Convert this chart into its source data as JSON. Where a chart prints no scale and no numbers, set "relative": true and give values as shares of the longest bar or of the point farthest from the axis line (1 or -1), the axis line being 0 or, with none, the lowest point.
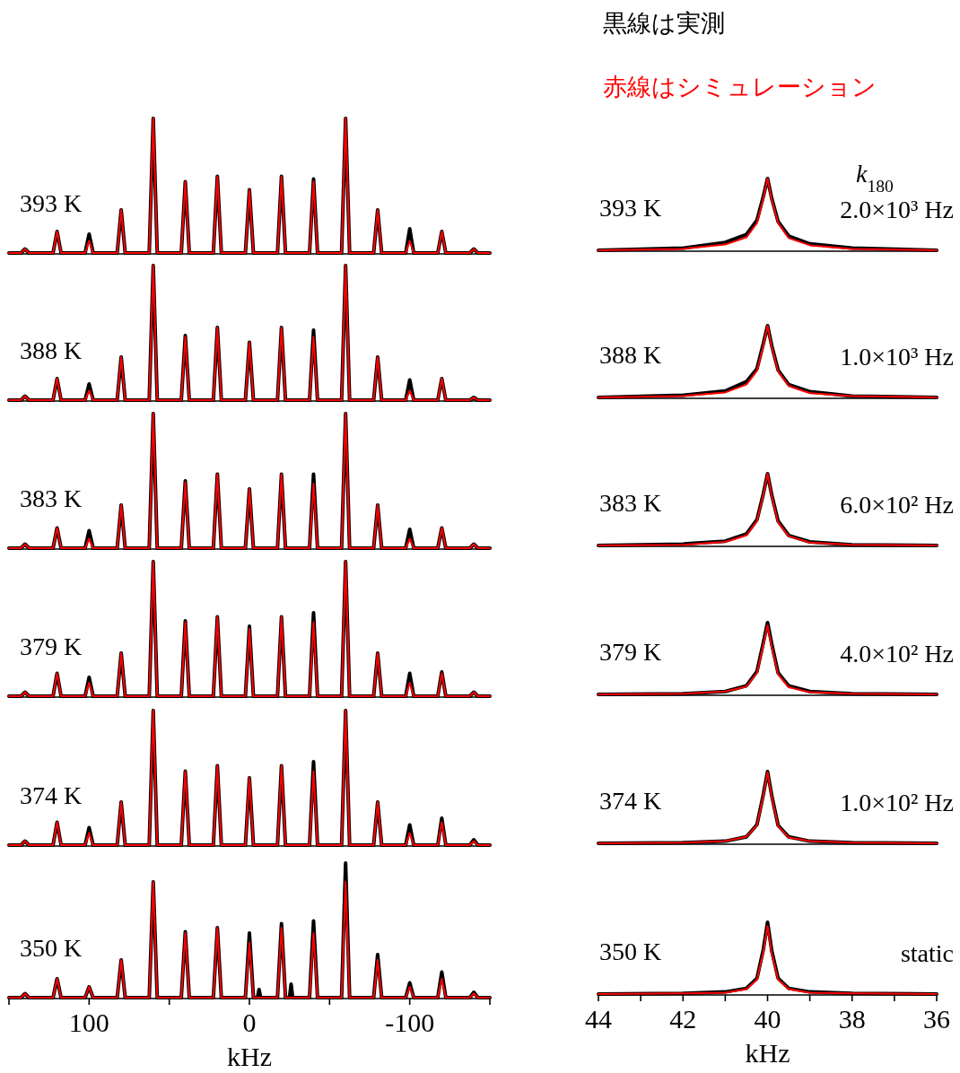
{
  "chart_data": [
    {
      "type": "line",
      "relative": true,
      "xlim": [
        150,
        -150
      ],
      "tick_labels": false,
      "annotations": [
        "393 K"
      ],
      "series": [
        {
          "color": "#000000",
          "x": [
            150,
            142.5,
            140,
            137.5,
            122.5,
            120,
            117.5,
            102.5,
            100,
            97.5,
            82.5,
            80,
            77.5,
            62.5,
            60,
            57.5,
            42.5,
            40,
            37.5,
            22.5,
            20,
            17.5,
            2.5,
            0,
            -2.5,
            -17.5,
            -20,
            -22.5,
            -37.5,
            -40,
            -42.5,
            -57.5,
            -60,
            -62.5,
            -77.5,
            -80,
            -82.5,
            -97.5,
            -100,
            -102.5,
            -117.5,
            -120,
            -122.5,
            -137.5,
            -140,
            -142.5,
            -150
          ],
          "values": [
            0,
            0,
            0.03,
            0,
            0,
            0.16,
            0,
            0,
            0.14,
            0,
            0,
            0.32,
            0,
            0,
            1,
            0,
            0,
            0.53,
            0,
            0,
            0.57,
            0,
            0,
            0.47,
            0,
            0,
            0.57,
            0,
            0,
            0.55,
            0,
            0,
            1,
            0,
            0,
            0.32,
            0,
            0,
            0.18,
            0,
            0,
            0.16,
            0,
            0,
            0.03,
            0,
            0
          ]
        },
        {
          "color": "#ff0000",
          "x": [
            150,
            142.5,
            140,
            137.5,
            122.5,
            120,
            117.5,
            102.5,
            100,
            97.5,
            82.5,
            80,
            77.5,
            62.5,
            60,
            57.5,
            42.5,
            40,
            37.5,
            22.5,
            20,
            17.5,
            2.5,
            0,
            -2.5,
            -17.5,
            -20,
            -22.5,
            -37.5,
            -40,
            -42.5,
            -57.5,
            -60,
            -62.5,
            -77.5,
            -80,
            -82.5,
            -97.5,
            -100,
            -102.5,
            -117.5,
            -120,
            -122.5,
            -137.5,
            -140,
            -142.5,
            -150
          ],
          "values": [
            0,
            0,
            0.03,
            0,
            0,
            0.16,
            0,
            0,
            0.09,
            0,
            0,
            0.32,
            0,
            0,
            1,
            0,
            0,
            0.53,
            0,
            0,
            0.57,
            0,
            0,
            0.47,
            0,
            0,
            0.57,
            0,
            0,
            0.53,
            0,
            0,
            1,
            0,
            0,
            0.32,
            0,
            0,
            0.09,
            0,
            0,
            0.16,
            0,
            0,
            0.03,
            0,
            0
          ]
        }
      ]
    },
    {
      "type": "line",
      "relative": true,
      "xlim": [
        150,
        -150
      ],
      "tick_labels": false,
      "annotations": [
        "388 K"
      ],
      "series": [
        {
          "color": "#000000",
          "x": [
            150,
            142.5,
            140,
            137.5,
            122.5,
            120,
            117.5,
            102.5,
            100,
            97.5,
            82.5,
            80,
            77.5,
            62.5,
            60,
            57.5,
            42.5,
            40,
            37.5,
            22.5,
            20,
            17.5,
            2.5,
            0,
            -2.5,
            -17.5,
            -20,
            -22.5,
            -37.5,
            -40,
            -42.5,
            -57.5,
            -60,
            -62.5,
            -77.5,
            -80,
            -82.5,
            -97.5,
            -100,
            -102.5,
            -117.5,
            -120,
            -122.5,
            -137.5,
            -140,
            -142.5,
            -150
          ],
          "values": [
            0,
            0,
            0.03,
            0,
            0,
            0.16,
            0,
            0,
            0.12,
            0,
            0,
            0.32,
            0,
            0,
            1,
            0,
            0,
            0.48,
            0,
            0,
            0.54,
            0,
            0,
            0.43,
            0,
            0,
            0.54,
            0,
            0,
            0.52,
            0,
            0,
            1,
            0,
            0,
            0.32,
            0,
            0,
            0.15,
            0,
            0,
            0.16,
            0,
            0,
            0.02,
            0,
            0
          ]
        },
        {
          "color": "#ff0000",
          "x": [
            150,
            142.5,
            140,
            137.5,
            122.5,
            120,
            117.5,
            102.5,
            100,
            97.5,
            82.5,
            80,
            77.5,
            62.5,
            60,
            57.5,
            42.5,
            40,
            37.5,
            22.5,
            20,
            17.5,
            2.5,
            0,
            -2.5,
            -17.5,
            -20,
            -22.5,
            -37.5,
            -40,
            -42.5,
            -57.5,
            -60,
            -62.5,
            -77.5,
            -80,
            -82.5,
            -97.5,
            -100,
            -102.5,
            -117.5,
            -120,
            -122.5,
            -137.5,
            -140,
            -142.5,
            -150
          ],
          "values": [
            0,
            0,
            0.03,
            0,
            0,
            0.16,
            0,
            0,
            0.07,
            0,
            0,
            0.32,
            0,
            0,
            1,
            0,
            0,
            0.47,
            0,
            0,
            0.54,
            0,
            0,
            0.43,
            0,
            0,
            0.54,
            0,
            0,
            0.47,
            0,
            0,
            1,
            0,
            0,
            0.32,
            0,
            0,
            0.07,
            0,
            0,
            0.16,
            0,
            0,
            0.02,
            0,
            0
          ]
        }
      ]
    },
    {
      "type": "line",
      "relative": true,
      "xlim": [
        150,
        -150
      ],
      "tick_labels": false,
      "annotations": [
        "383 K"
      ],
      "series": [
        {
          "color": "#000000",
          "x": [
            150,
            142.5,
            140,
            137.5,
            122.5,
            120,
            117.5,
            102.5,
            100,
            97.5,
            82.5,
            80,
            77.5,
            62.5,
            60,
            57.5,
            42.5,
            40,
            37.5,
            22.5,
            20,
            17.5,
            2.5,
            0,
            -2.5,
            -17.5,
            -20,
            -22.5,
            -37.5,
            -40,
            -42.5,
            -57.5,
            -60,
            -62.5,
            -77.5,
            -80,
            -82.5,
            -97.5,
            -100,
            -102.5,
            -117.5,
            -120,
            -122.5,
            -137.5,
            -140,
            -142.5,
            -150
          ],
          "values": [
            0,
            0,
            0.03,
            0,
            0,
            0.15,
            0,
            0,
            0.13,
            0,
            0,
            0.32,
            0,
            0,
            1,
            0,
            0,
            0.5,
            0,
            0,
            0.55,
            0,
            0,
            0.44,
            0,
            0,
            0.55,
            0,
            0,
            0.55,
            0,
            0,
            1,
            0,
            0,
            0.32,
            0,
            0,
            0.14,
            0,
            0,
            0.15,
            0,
            0,
            0.03,
            0,
            0
          ]
        },
        {
          "color": "#ff0000",
          "x": [
            150,
            142.5,
            140,
            137.5,
            122.5,
            120,
            117.5,
            102.5,
            100,
            97.5,
            82.5,
            80,
            77.5,
            62.5,
            60,
            57.5,
            42.5,
            40,
            37.5,
            22.5,
            20,
            17.5,
            2.5,
            0,
            -2.5,
            -17.5,
            -20,
            -22.5,
            -37.5,
            -40,
            -42.5,
            -57.5,
            -60,
            -62.5,
            -77.5,
            -80,
            -82.5,
            -97.5,
            -100,
            -102.5,
            -117.5,
            -120,
            -122.5,
            -137.5,
            -140,
            -142.5,
            -150
          ],
          "values": [
            0,
            0,
            0.03,
            0,
            0,
            0.15,
            0,
            0,
            0.07,
            0,
            0,
            0.32,
            0,
            0,
            1,
            0,
            0,
            0.49,
            0,
            0,
            0.55,
            0,
            0,
            0.44,
            0,
            0,
            0.55,
            0,
            0,
            0.48,
            0,
            0,
            1,
            0,
            0,
            0.32,
            0,
            0,
            0.07,
            0,
            0,
            0.15,
            0,
            0,
            0.03,
            0,
            0
          ]
        }
      ]
    },
    {
      "type": "line",
      "relative": true,
      "xlim": [
        150,
        -150
      ],
      "tick_labels": false,
      "annotations": [
        "379 K"
      ],
      "series": [
        {
          "color": "#000000",
          "x": [
            150,
            142.5,
            140,
            137.5,
            122.5,
            120,
            117.5,
            102.5,
            100,
            97.5,
            82.5,
            80,
            77.5,
            62.5,
            60,
            57.5,
            42.5,
            40,
            37.5,
            22.5,
            20,
            17.5,
            2.5,
            0,
            -2.5,
            -17.5,
            -20,
            -22.5,
            -37.5,
            -40,
            -42.5,
            -57.5,
            -60,
            -62.5,
            -77.5,
            -80,
            -82.5,
            -97.5,
            -100,
            -102.5,
            -117.5,
            -120,
            -122.5,
            -137.5,
            -140,
            -142.5,
            -150
          ],
          "values": [
            0,
            0,
            0.03,
            0,
            0,
            0.17,
            0,
            0,
            0.14,
            0,
            0,
            0.32,
            0,
            0,
            1,
            0,
            0,
            0.56,
            0,
            0,
            0.59,
            0,
            0,
            0.52,
            0,
            0,
            0.59,
            0,
            0,
            0.62,
            0,
            0,
            1,
            0,
            0,
            0.32,
            0,
            0,
            0.17,
            0,
            0,
            0.18,
            0,
            0,
            0.03,
            0,
            0
          ]
        },
        {
          "color": "#ff0000",
          "x": [
            150,
            142.5,
            140,
            137.5,
            122.5,
            120,
            117.5,
            102.5,
            100,
            97.5,
            82.5,
            80,
            77.5,
            62.5,
            60,
            57.5,
            42.5,
            40,
            37.5,
            22.5,
            20,
            17.5,
            2.5,
            0,
            -2.5,
            -17.5,
            -20,
            -22.5,
            -37.5,
            -40,
            -42.5,
            -57.5,
            -60,
            -62.5,
            -77.5,
            -80,
            -82.5,
            -97.5,
            -100,
            -102.5,
            -117.5,
            -120,
            -122.5,
            -137.5,
            -140,
            -142.5,
            -150
          ],
          "values": [
            0,
            0,
            0.03,
            0,
            0,
            0.17,
            0,
            0,
            0.1,
            0,
            0,
            0.32,
            0,
            0,
            1,
            0,
            0,
            0.55,
            0,
            0,
            0.59,
            0,
            0,
            0.5,
            0,
            0,
            0.59,
            0,
            0,
            0.55,
            0,
            0,
            1,
            0,
            0,
            0.32,
            0,
            0,
            0.1,
            0,
            0,
            0.17,
            0,
            0,
            0.03,
            0,
            0
          ]
        }
      ]
    },
    {
      "type": "line",
      "relative": true,
      "xlim": [
        150,
        -150
      ],
      "tick_labels": false,
      "annotations": [
        "374 K"
      ],
      "series": [
        {
          "color": "#000000",
          "x": [
            150,
            142.5,
            140,
            137.5,
            122.5,
            120,
            117.5,
            102.5,
            100,
            97.5,
            82.5,
            80,
            77.5,
            62.5,
            60,
            57.5,
            42.5,
            40,
            37.5,
            22.5,
            20,
            17.5,
            2.5,
            0,
            -2.5,
            -17.5,
            -20,
            -22.5,
            -37.5,
            -40,
            -42.5,
            -57.5,
            -60,
            -62.5,
            -77.5,
            -80,
            -82.5,
            -97.5,
            -100,
            -102.5,
            -117.5,
            -120,
            -122.5,
            -137.5,
            -140,
            -142.5,
            -150
          ],
          "values": [
            0,
            0,
            0.03,
            0,
            0,
            0.17,
            0,
            0,
            0.13,
            0,
            0,
            0.32,
            0,
            0,
            1,
            0,
            0,
            0.55,
            0,
            0,
            0.59,
            0,
            0,
            0.5,
            0,
            0,
            0.59,
            0,
            0,
            0.62,
            0,
            0,
            1,
            0,
            0,
            0.32,
            0,
            0,
            0.15,
            0,
            0,
            0.2,
            0,
            0,
            0.04,
            0,
            0
          ]
        },
        {
          "color": "#ff0000",
          "x": [
            150,
            142.5,
            140,
            137.5,
            122.5,
            120,
            117.5,
            102.5,
            100,
            97.5,
            82.5,
            80,
            77.5,
            62.5,
            60,
            57.5,
            42.5,
            40,
            37.5,
            22.5,
            20,
            17.5,
            2.5,
            0,
            -2.5,
            -17.5,
            -20,
            -22.5,
            -37.5,
            -40,
            -42.5,
            -57.5,
            -60,
            -62.5,
            -77.5,
            -80,
            -82.5,
            -97.5,
            -100,
            -102.5,
            -117.5,
            -120,
            -122.5,
            -137.5,
            -140,
            -142.5,
            -150
          ],
          "values": [
            0,
            0,
            0.03,
            0,
            0,
            0.17,
            0,
            0,
            0.09,
            0,
            0,
            0.32,
            0,
            0,
            1,
            0,
            0,
            0.55,
            0,
            0,
            0.59,
            0,
            0,
            0.5,
            0,
            0,
            0.59,
            0,
            0,
            0.55,
            0,
            0,
            1,
            0,
            0,
            0.32,
            0,
            0,
            0.09,
            0,
            0,
            0.17,
            0,
            0,
            0.03,
            0,
            0
          ]
        }
      ]
    },
    {
      "type": "line",
      "relative": true,
      "xlim": [
        150,
        -150
      ],
      "tick_labels": "x",
      "xlabel": "kHz",
      "xticks": [
        {
          "value": 150,
          "label": null
        },
        100,
        {
          "value": 50,
          "label": null
        },
        0,
        {
          "value": -50,
          "label": null
        },
        -100,
        {
          "value": -150,
          "label": null
        }
      ],
      "annotations": [
        "350 K"
      ],
      "series": [
        {
          "color": "#000000",
          "x": [
            150,
            142.5,
            140,
            137.5,
            122.5,
            120,
            117.5,
            102.5,
            100,
            97.5,
            82.5,
            80,
            77.5,
            62.5,
            60,
            57.5,
            42.5,
            40,
            37.5,
            22.5,
            20,
            17.5,
            2.5,
            0,
            -2.5,
            -5,
            -6,
            -7,
            -17.5,
            -20,
            -22.5,
            -25,
            -26,
            -27,
            -37.5,
            -40,
            -42.5,
            -57.5,
            -60,
            -62.5,
            -77.5,
            -80,
            -82.5,
            -97.5,
            -100,
            -102.5,
            -117.5,
            -120,
            -122.5,
            -137.5,
            -140,
            -142.5,
            -150
          ],
          "values": [
            0,
            0,
            0.03,
            0,
            0,
            0.14,
            0,
            0,
            0.08,
            0,
            0,
            0.28,
            0,
            0,
            0.86,
            0,
            0,
            0.49,
            0,
            0,
            0.52,
            0,
            0,
            0.48,
            0,
            0,
            0.06,
            0,
            0,
            0.55,
            0,
            0,
            0.1,
            0,
            0,
            0.57,
            0,
            0,
            1,
            0,
            0,
            0.32,
            0,
            0,
            0.11,
            0,
            0,
            0.19,
            0,
            0,
            0.04,
            0,
            0
          ]
        },
        {
          "color": "#ff0000",
          "x": [
            150,
            142.5,
            140,
            137.5,
            122.5,
            120,
            117.5,
            102.5,
            100,
            97.5,
            82.5,
            80,
            77.5,
            62.5,
            60,
            57.5,
            42.5,
            40,
            37.5,
            22.5,
            20,
            17.5,
            2.5,
            0,
            -2.5,
            -17.5,
            -20,
            -22.5,
            -37.5,
            -40,
            -42.5,
            -57.5,
            -60,
            -62.5,
            -77.5,
            -80,
            -82.5,
            -97.5,
            -100,
            -102.5,
            -117.5,
            -120,
            -122.5,
            -137.5,
            -140,
            -142.5,
            -150
          ],
          "values": [
            0,
            0,
            0.03,
            0,
            0,
            0.14,
            0,
            0,
            0.08,
            0,
            0,
            0.28,
            0,
            0,
            0.86,
            0,
            0,
            0.48,
            0,
            0,
            0.52,
            0,
            0,
            0.41,
            0,
            0,
            0.52,
            0,
            0,
            0.48,
            0,
            0,
            0.86,
            0,
            0,
            0.28,
            0,
            0,
            0.08,
            0,
            0,
            0.14,
            0,
            0,
            0.03,
            0,
            0
          ]
        }
      ]
    },
    {
      "type": "line",
      "relative": true,
      "xlim": [
        44,
        36
      ],
      "tick_labels": false,
      "annotations": [
        "393 K",
        "2.0×10³ Hz",
        "*k*$_{180}$"
      ],
      "series": [
        {
          "name": "黒線は実測",
          "color": "#000000",
          "x": [
            44,
            42,
            41,
            40.5,
            40.25,
            40.1,
            40,
            39.9,
            39.75,
            39.5,
            39,
            38,
            36
          ],
          "values": [
            0,
            0.03,
            0.11,
            0.22,
            0.42,
            0.75,
            1,
            0.72,
            0.4,
            0.2,
            0.09,
            0.03,
            0
          ]
        },
        {
          "name": "赤線はシミュレーション",
          "color": "#ff0000",
          "x": [
            44,
            42,
            41,
            40.5,
            40.25,
            40.1,
            40,
            39.9,
            39.75,
            39.5,
            39,
            38,
            36
          ],
          "values": [
            0,
            0.02,
            0.08,
            0.18,
            0.38,
            0.72,
            1,
            0.7,
            0.38,
            0.17,
            0.07,
            0.02,
            0
          ]
        }
      ]
    },
    {
      "type": "line",
      "relative": true,
      "xlim": [
        44,
        36
      ],
      "tick_labels": false,
      "annotations": [
        "388 K",
        "1.0×10³ Hz"
      ],
      "series": [
        {
          "color": "#000000",
          "x": [
            44,
            42,
            41,
            40.5,
            40.25,
            40.1,
            40,
            39.9,
            39.75,
            39.5,
            39,
            38,
            36
          ],
          "values": [
            0,
            0.03,
            0.09,
            0.22,
            0.4,
            0.75,
            1,
            0.72,
            0.38,
            0.18,
            0.08,
            0.02,
            0
          ]
        },
        {
          "color": "#ff0000",
          "x": [
            44,
            42,
            41,
            40.5,
            40.25,
            40.1,
            40,
            39.9,
            39.75,
            39.5,
            39,
            38,
            36
          ],
          "values": [
            0,
            0.02,
            0.07,
            0.18,
            0.37,
            0.72,
            1,
            0.7,
            0.36,
            0.16,
            0.06,
            0.02,
            0
          ]
        }
      ]
    },
    {
      "type": "line",
      "relative": true,
      "xlim": [
        44,
        36
      ],
      "tick_labels": false,
      "annotations": [
        "383 K",
        "6.0×10² Hz"
      ],
      "series": [
        {
          "color": "#000000",
          "x": [
            44,
            42,
            41,
            40.5,
            40.25,
            40.1,
            40,
            39.9,
            39.75,
            39.5,
            39,
            38,
            36
          ],
          "values": [
            0,
            0.02,
            0.06,
            0.16,
            0.36,
            0.72,
            1,
            0.7,
            0.34,
            0.14,
            0.05,
            0.01,
            0
          ]
        },
        {
          "color": "#ff0000",
          "x": [
            44,
            42,
            41,
            40.5,
            40.25,
            40.1,
            40,
            39.9,
            39.75,
            39.5,
            39,
            38,
            36
          ],
          "values": [
            0,
            0.01,
            0.05,
            0.14,
            0.34,
            0.7,
            1,
            0.68,
            0.32,
            0.13,
            0.04,
            0.01,
            0
          ]
        }
      ]
    },
    {
      "type": "line",
      "relative": true,
      "xlim": [
        44,
        36
      ],
      "tick_labels": false,
      "annotations": [
        "379 K",
        "4.0×10² Hz"
      ],
      "series": [
        {
          "color": "#000000",
          "x": [
            44,
            42,
            41,
            40.5,
            40.25,
            40.1,
            40,
            39.9,
            39.75,
            39.5,
            39,
            38,
            36
          ],
          "values": [
            0,
            0.01,
            0.04,
            0.12,
            0.32,
            0.72,
            1,
            0.7,
            0.3,
            0.12,
            0.04,
            0.01,
            0
          ]
        },
        {
          "color": "#ff0000",
          "x": [
            44,
            42,
            41,
            40.5,
            40.25,
            40.1,
            40,
            39.9,
            39.75,
            39.5,
            39,
            38,
            36
          ],
          "values": [
            0,
            0.01,
            0.04,
            0.11,
            0.3,
            0.68,
            0.96,
            0.66,
            0.28,
            0.1,
            0.03,
            0.01,
            0
          ]
        }
      ]
    },
    {
      "type": "line",
      "relative": true,
      "xlim": [
        44,
        36
      ],
      "tick_labels": false,
      "annotations": [
        "374 K",
        "1.0×10² Hz"
      ],
      "series": [
        {
          "color": "#000000",
          "x": [
            44,
            42,
            41,
            40.5,
            40.25,
            40.1,
            40,
            39.9,
            39.75,
            39.5,
            39,
            38,
            36
          ],
          "values": [
            0,
            0.01,
            0.03,
            0.09,
            0.26,
            0.68,
            1,
            0.66,
            0.25,
            0.09,
            0.03,
            0.01,
            0
          ]
        },
        {
          "color": "#ff0000",
          "x": [
            44,
            42,
            41,
            40.5,
            40.25,
            40.1,
            40,
            39.9,
            39.75,
            39.5,
            39,
            38,
            36
          ],
          "values": [
            0,
            0.01,
            0.03,
            0.09,
            0.25,
            0.66,
            0.99,
            0.64,
            0.24,
            0.08,
            0.03,
            0.01,
            0
          ]
        }
      ]
    },
    {
      "type": "line",
      "relative": true,
      "xlim": [
        44,
        36
      ],
      "tick_labels": "x",
      "xlabel": "kHz",
      "xticks": [
        44,
        {
          "value": 43,
          "label": null
        },
        42,
        {
          "value": 41,
          "label": null
        },
        40,
        {
          "value": 39,
          "label": null
        },
        38,
        {
          "value": 37,
          "label": null
        },
        36
      ],
      "annotations": [
        "350 K",
        "static"
      ],
      "series": [
        {
          "color": "#000000",
          "x": [
            44,
            42,
            41,
            40.5,
            40.25,
            40.1,
            40,
            39.9,
            39.75,
            39.5,
            39,
            38,
            36
          ],
          "values": [
            0,
            0.01,
            0.03,
            0.08,
            0.22,
            0.62,
            1,
            0.6,
            0.22,
            0.08,
            0.03,
            0.01,
            0
          ]
        },
        {
          "color": "#ff0000",
          "x": [
            44,
            42,
            41,
            40.5,
            40.25,
            40.1,
            40,
            39.9,
            39.75,
            39.5,
            39,
            38,
            36
          ],
          "values": [
            0,
            0.01,
            0.02,
            0.07,
            0.2,
            0.58,
            0.95,
            0.56,
            0.2,
            0.07,
            0.02,
            0.01,
            0
          ]
        }
      ]
    }
  ]
}
